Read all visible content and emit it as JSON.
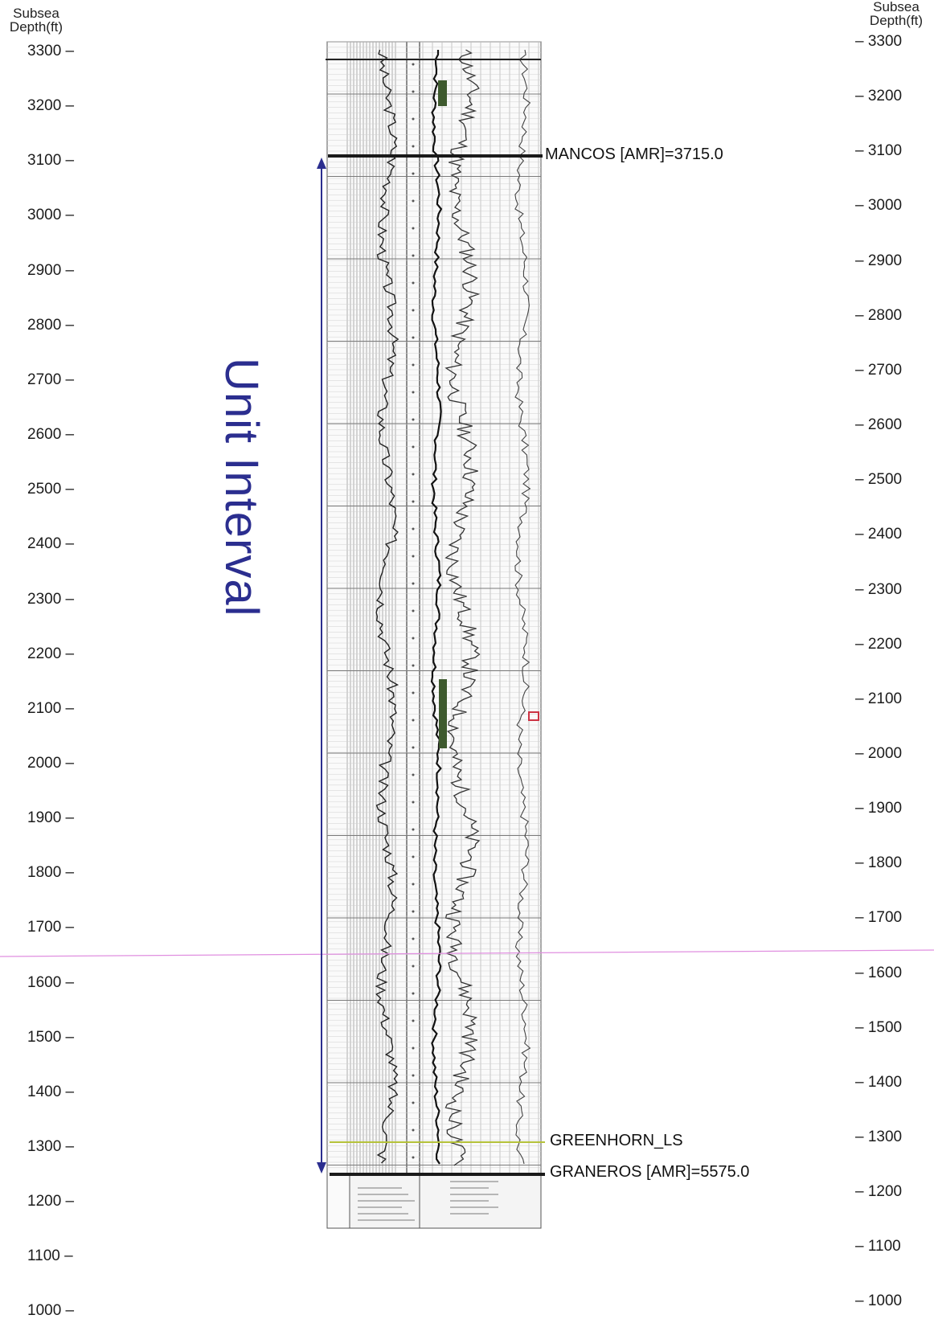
{
  "left_axis": {
    "title_line1": "Subsea",
    "title_line2": "Depth(ft)"
  },
  "right_axis": {
    "title_line1": "Subsea",
    "title_line2": "Depth(ft)"
  },
  "left_ticks": [
    "3300 –",
    "3200 –",
    "3100 –",
    "3000 –",
    "2900 –",
    "2800 –",
    "2700 –",
    "2600 –",
    "2500 –",
    "2400 –",
    "2300 –",
    "2200 –",
    "2100 –",
    "2000 –",
    "1900 –",
    "1800 –",
    "1700 –",
    "1600 –",
    "1500 –",
    "1400 –",
    "1300 –",
    "1200 –",
    "1100 –",
    "1000 –"
  ],
  "right_ticks": [
    "– 3300",
    "– 3200",
    "– 3100",
    "– 3000",
    "– 2900",
    "– 2800",
    "– 2700",
    "– 2600",
    "– 2500",
    "– 2400",
    "– 2300",
    "– 2200",
    "– 2100",
    "– 2000",
    "– 1900",
    "– 1800",
    "– 1700",
    "– 1600",
    "– 1500",
    "– 1400",
    "– 1300",
    "– 1200",
    "– 1100",
    "– 1000"
  ],
  "markers": {
    "mancos": "MANCOS [AMR]=3715.0",
    "greenhorn": "GREENHORN_LS",
    "graneros": "GRANEROS [AMR]=5575.0"
  },
  "interval_label": "Unit Interval",
  "colors": {
    "interval": "#2b2e8f",
    "greenhorn": "#b5c23a",
    "pink_line": "#e08fe0",
    "core_bar": "#3e5a2e",
    "red_marker": "#cc3344"
  }
}
